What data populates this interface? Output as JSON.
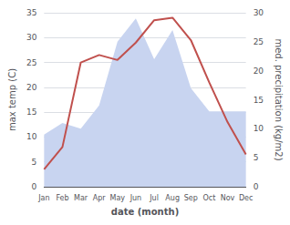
{
  "chart_data": {
    "type": "line",
    "categories": [
      "Jan",
      "Feb",
      "Mar",
      "Apr",
      "May",
      "Jun",
      "Jul",
      "Aug",
      "Sep",
      "Oct",
      "Nov",
      "Dec"
    ],
    "xlabel": "date (month)",
    "ylabel": "max temp (C)",
    "y2label": "med. precipitation (kg/m2)",
    "series": [
      {
        "type": "area",
        "axis": "y2",
        "color": "#c8d4f0",
        "values": [
          9.0,
          11.0,
          10.0,
          14.0,
          25.0,
          29.0,
          22.0,
          27.0,
          17.0,
          13.0,
          13.0,
          13.0
        ]
      },
      {
        "type": "line",
        "color": "#c0504d",
        "values": [
          3.5,
          8.0,
          25.0,
          26.5,
          25.5,
          29.0,
          33.5,
          34.0,
          29.5,
          21.0,
          13.0,
          6.5
        ]
      }
    ],
    "ylim": [
      0,
      35
    ],
    "yticks": [
      0,
      5,
      10,
      15,
      20,
      25,
      30,
      35
    ],
    "y2lim": [
      0,
      30
    ],
    "y2ticks": [
      0,
      5,
      10,
      15,
      20,
      25,
      30
    ],
    "grid": true
  }
}
